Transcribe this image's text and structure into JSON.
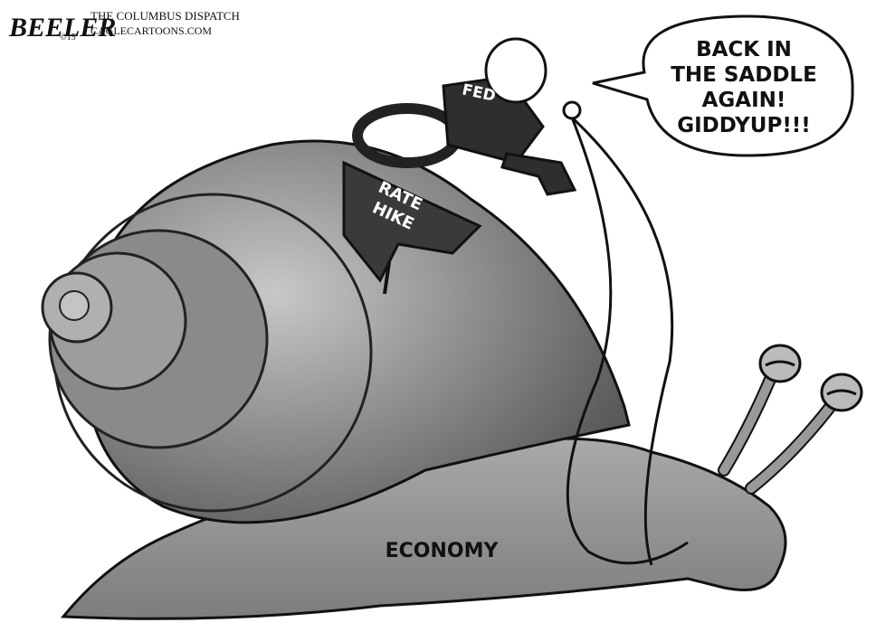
{
  "signature": {
    "artist": "BEELER",
    "copyright": "©15",
    "publication": "THE COLUMBUS DISPATCH",
    "site": "CAGLECARTOONS.COM"
  },
  "speech_bubble": {
    "lines": [
      "BACK IN",
      "THE SADDLE",
      "AGAIN!",
      "GIDDYUP!!!"
    ]
  },
  "labels": {
    "rider": "FED",
    "saddle": [
      "RATE",
      "HIKE"
    ],
    "snail": "ECONOMY"
  }
}
